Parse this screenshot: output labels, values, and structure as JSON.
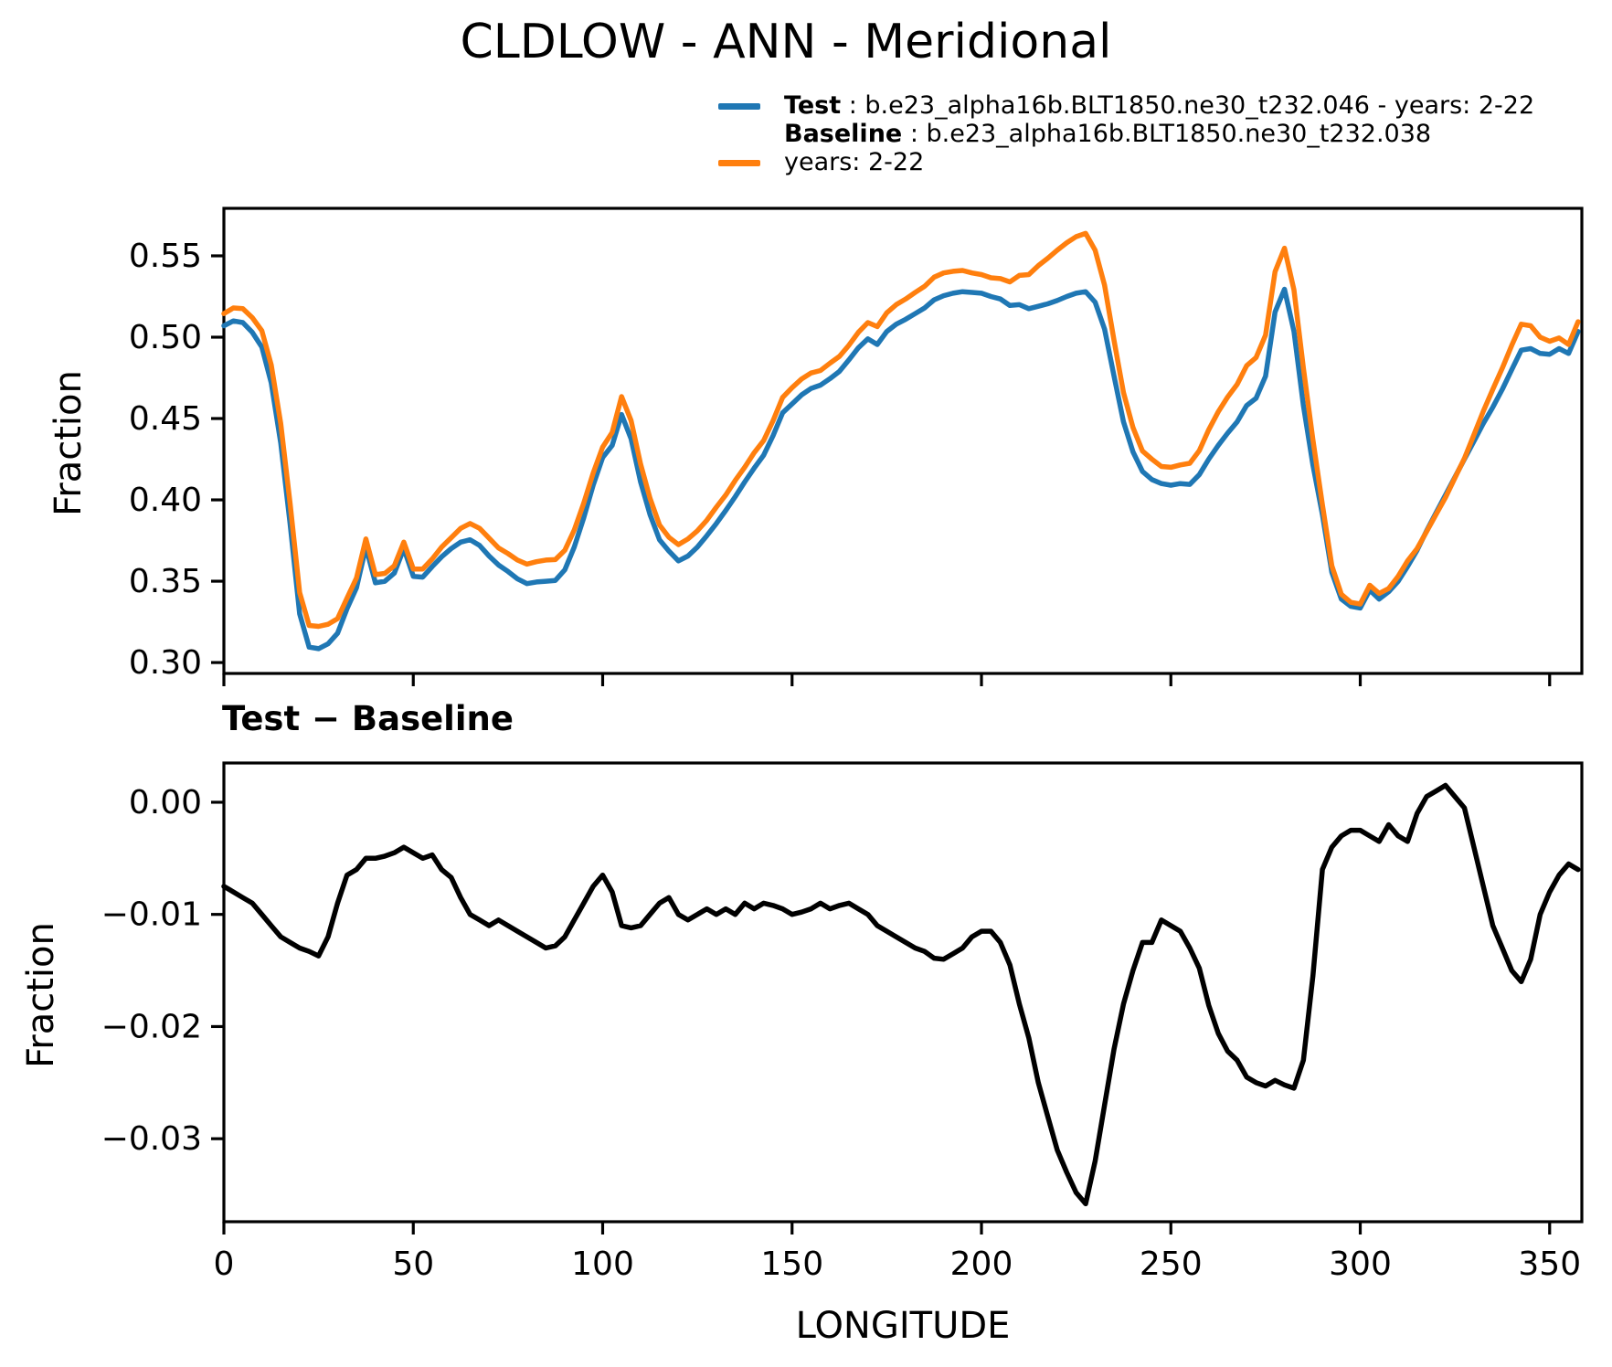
{
  "figure_title": "CLDLOW - ANN - Meridional",
  "legend": {
    "entries": [
      {
        "label": "Test",
        "text": " : b.e23_alpha16b.BLT1850.ne30_t232.046 - years: 2-22",
        "color": "#1f77b4"
      },
      {
        "label": "Baseline",
        "text": " : b.e23_alpha16b.BLT1850.ne30_t232.038",
        "text_line2": "years: 2-22",
        "color": "#ff7f0e"
      }
    ]
  },
  "top_plot": {
    "ylabel": "Fraction",
    "ylim": [
      0.2933,
      0.5792
    ],
    "xlim": [
      0,
      358.5
    ],
    "yticks": [
      0.3,
      0.35,
      0.4,
      0.45,
      0.5,
      0.55
    ],
    "ytick_labels": [
      "0.30",
      "0.35",
      "0.40",
      "0.45",
      "0.50",
      "0.55"
    ],
    "xticks": [
      0,
      50,
      100,
      150,
      200,
      250,
      300,
      350
    ],
    "xtick_labels": []
  },
  "bottom_plot": {
    "title": "Test − Baseline",
    "ylabel": "Fraction",
    "xlabel": "LONGITUDE",
    "ylim": [
      -0.0374,
      0.0035
    ],
    "xlim": [
      0,
      358.5
    ],
    "yticks": [
      0.0,
      -0.01,
      -0.02,
      -0.03
    ],
    "ytick_labels": [
      "0.00",
      "−0.01",
      "−0.02",
      "−0.03"
    ],
    "xticks": [
      0,
      50,
      100,
      150,
      200,
      250,
      300,
      350
    ],
    "xtick_labels": [
      "0",
      "50",
      "100",
      "150",
      "200",
      "250",
      "300",
      "350"
    ]
  },
  "chart_data": [
    {
      "type": "line",
      "panel": "top",
      "title": "CLDLOW - ANN - Meridional",
      "xlabel": "",
      "ylabel": "Fraction",
      "ylim": [
        0.2933,
        0.5792
      ],
      "legend_position": "upper-right-above-axes",
      "grid": false,
      "x": [
        0,
        2.5,
        5,
        7.5,
        10,
        12.5,
        15,
        17.5,
        20,
        22.5,
        25,
        27.5,
        30,
        32.5,
        35,
        37.5,
        40,
        42.5,
        45,
        47.5,
        50,
        52.5,
        55,
        57.5,
        60,
        62.5,
        65,
        67.5,
        70,
        72.5,
        75,
        77.5,
        80,
        82.5,
        85,
        87.5,
        90,
        92.5,
        95,
        97.5,
        100,
        102.5,
        105,
        107.5,
        110,
        112.5,
        115,
        117.5,
        120,
        122.5,
        125,
        127.5,
        130,
        132.5,
        135,
        137.5,
        140,
        142.5,
        145,
        147.5,
        150,
        152.5,
        155,
        157.5,
        160,
        162.5,
        165,
        167.5,
        170,
        172.5,
        175,
        177.5,
        180,
        182.5,
        185,
        187.5,
        190,
        192.5,
        195,
        197.5,
        200,
        202.5,
        205,
        207.5,
        210,
        212.5,
        215,
        217.5,
        220,
        222.5,
        225,
        227.5,
        230,
        232.5,
        235,
        237.5,
        240,
        242.5,
        245,
        247.5,
        250,
        252.5,
        255,
        257.5,
        260,
        262.5,
        265,
        267.5,
        270,
        272.5,
        275,
        277.5,
        280,
        282.5,
        285,
        287.5,
        290,
        292.5,
        295,
        297.5,
        300,
        302.5,
        305,
        307.5,
        310,
        312.5,
        315,
        317.5,
        320,
        322.5,
        325,
        327.5,
        330,
        332.5,
        335,
        337.5,
        340,
        342.5,
        345,
        347.5,
        350,
        352.5,
        355,
        357.5
      ],
      "series": [
        {
          "name": "Test",
          "color": "#1f77b4",
          "values": [
            0.507,
            0.51,
            0.509,
            0.503,
            0.494,
            0.472,
            0.435,
            0.385,
            0.33,
            0.3095,
            0.3085,
            0.3115,
            0.318,
            0.333,
            0.346,
            0.371,
            0.349,
            0.35,
            0.355,
            0.37,
            0.353,
            0.3525,
            0.359,
            0.365,
            0.37,
            0.374,
            0.3755,
            0.372,
            0.3655,
            0.36,
            0.356,
            0.3515,
            0.3485,
            0.3495,
            0.35,
            0.3505,
            0.357,
            0.371,
            0.389,
            0.409,
            0.426,
            0.4335,
            0.4525,
            0.4375,
            0.411,
            0.391,
            0.3755,
            0.3685,
            0.3625,
            0.3655,
            0.371,
            0.378,
            0.3855,
            0.3935,
            0.402,
            0.411,
            0.4195,
            0.4275,
            0.4395,
            0.4535,
            0.459,
            0.4645,
            0.4685,
            0.4705,
            0.4745,
            0.479,
            0.486,
            0.4935,
            0.499,
            0.4955,
            0.5035,
            0.508,
            0.511,
            0.5145,
            0.518,
            0.523,
            0.5255,
            0.527,
            0.528,
            0.5275,
            0.527,
            0.525,
            0.5235,
            0.5195,
            0.52,
            0.5175,
            0.519,
            0.5205,
            0.5225,
            0.525,
            0.527,
            0.528,
            0.5215,
            0.505,
            0.476,
            0.448,
            0.4295,
            0.4175,
            0.4125,
            0.41,
            0.409,
            0.41,
            0.4095,
            0.4155,
            0.425,
            0.4335,
            0.441,
            0.448,
            0.458,
            0.4625,
            0.476,
            0.5155,
            0.5295,
            0.5035,
            0.458,
            0.4215,
            0.391,
            0.3555,
            0.339,
            0.3345,
            0.3335,
            0.3445,
            0.339,
            0.3435,
            0.35,
            0.359,
            0.369,
            0.381,
            0.392,
            0.403,
            0.414,
            0.425,
            0.436,
            0.447,
            0.457,
            0.468,
            0.48,
            0.492,
            0.493,
            0.49,
            0.4895,
            0.493,
            0.49,
            0.5035
          ]
        },
        {
          "name": "Baseline",
          "color": "#ff7f0e",
          "values": [
            0.5145,
            0.518,
            0.5175,
            0.512,
            0.504,
            0.483,
            0.447,
            0.3975,
            0.343,
            0.3228,
            0.3222,
            0.3235,
            0.327,
            0.3395,
            0.352,
            0.376,
            0.354,
            0.3548,
            0.3595,
            0.374,
            0.3575,
            0.3575,
            0.3637,
            0.371,
            0.3767,
            0.3825,
            0.3855,
            0.3825,
            0.3765,
            0.3705,
            0.367,
            0.363,
            0.3605,
            0.362,
            0.363,
            0.3633,
            0.369,
            0.3815,
            0.398,
            0.4165,
            0.4325,
            0.4415,
            0.4635,
            0.4487,
            0.422,
            0.401,
            0.3845,
            0.377,
            0.3725,
            0.376,
            0.381,
            0.3875,
            0.3955,
            0.403,
            0.412,
            0.42,
            0.429,
            0.4365,
            0.4487,
            0.463,
            0.469,
            0.4743,
            0.478,
            0.4795,
            0.484,
            0.4882,
            0.495,
            0.503,
            0.509,
            0.5065,
            0.515,
            0.52,
            0.5235,
            0.5275,
            0.5313,
            0.5369,
            0.5395,
            0.5405,
            0.541,
            0.5395,
            0.5385,
            0.5365,
            0.536,
            0.534,
            0.538,
            0.5385,
            0.544,
            0.5485,
            0.5535,
            0.558,
            0.5618,
            0.5638,
            0.5535,
            0.532,
            0.498,
            0.466,
            0.4445,
            0.43,
            0.425,
            0.4205,
            0.42,
            0.4215,
            0.4225,
            0.4303,
            0.4431,
            0.4541,
            0.4632,
            0.471,
            0.4825,
            0.4875,
            0.5013,
            0.5403,
            0.5547,
            0.529,
            0.481,
            0.437,
            0.397,
            0.3595,
            0.342,
            0.337,
            0.336,
            0.3475,
            0.3425,
            0.3455,
            0.353,
            0.3625,
            0.37,
            0.3805,
            0.391,
            0.4015,
            0.4135,
            0.4255,
            0.44,
            0.4545,
            0.468,
            0.481,
            0.495,
            0.508,
            0.507,
            0.5,
            0.4975,
            0.4995,
            0.4955,
            0.5095
          ]
        }
      ]
    },
    {
      "type": "line",
      "panel": "bottom",
      "title": "Test − Baseline",
      "xlabel": "LONGITUDE",
      "ylabel": "Fraction",
      "ylim": [
        -0.0374,
        0.0035
      ],
      "grid": false,
      "x": [
        0,
        2.5,
        5,
        7.5,
        10,
        12.5,
        15,
        17.5,
        20,
        22.5,
        25,
        27.5,
        30,
        32.5,
        35,
        37.5,
        40,
        42.5,
        45,
        47.5,
        50,
        52.5,
        55,
        57.5,
        60,
        62.5,
        65,
        67.5,
        70,
        72.5,
        75,
        77.5,
        80,
        82.5,
        85,
        87.5,
        90,
        92.5,
        95,
        97.5,
        100,
        102.5,
        105,
        107.5,
        110,
        112.5,
        115,
        117.5,
        120,
        122.5,
        125,
        127.5,
        130,
        132.5,
        135,
        137.5,
        140,
        142.5,
        145,
        147.5,
        150,
        152.5,
        155,
        157.5,
        160,
        162.5,
        165,
        167.5,
        170,
        172.5,
        175,
        177.5,
        180,
        182.5,
        185,
        187.5,
        190,
        192.5,
        195,
        197.5,
        200,
        202.5,
        205,
        207.5,
        210,
        212.5,
        215,
        217.5,
        220,
        222.5,
        225,
        227.5,
        230,
        232.5,
        235,
        237.5,
        240,
        242.5,
        245,
        247.5,
        250,
        252.5,
        255,
        257.5,
        260,
        262.5,
        265,
        267.5,
        270,
        272.5,
        275,
        277.5,
        280,
        282.5,
        285,
        287.5,
        290,
        292.5,
        295,
        297.5,
        300,
        302.5,
        305,
        307.5,
        310,
        312.5,
        315,
        317.5,
        320,
        322.5,
        325,
        327.5,
        330,
        332.5,
        335,
        337.5,
        340,
        342.5,
        345,
        347.5,
        350,
        352.5,
        355,
        357.5
      ],
      "series": [
        {
          "name": "Test − Baseline",
          "color": "#000000",
          "values": [
            -0.0075,
            -0.008,
            -0.0085,
            -0.009,
            -0.01,
            -0.011,
            -0.012,
            -0.0125,
            -0.013,
            -0.0133,
            -0.0137,
            -0.012,
            -0.009,
            -0.0065,
            -0.006,
            -0.005,
            -0.005,
            -0.0048,
            -0.0045,
            -0.004,
            -0.0045,
            -0.005,
            -0.0047,
            -0.006,
            -0.0067,
            -0.0085,
            -0.01,
            -0.0105,
            -0.011,
            -0.0105,
            -0.011,
            -0.0115,
            -0.012,
            -0.0125,
            -0.013,
            -0.0128,
            -0.012,
            -0.0105,
            -0.009,
            -0.0075,
            -0.0065,
            -0.008,
            -0.011,
            -0.0112,
            -0.011,
            -0.01,
            -0.009,
            -0.0085,
            -0.01,
            -0.0105,
            -0.01,
            -0.0095,
            -0.01,
            -0.0095,
            -0.01,
            -0.009,
            -0.0095,
            -0.009,
            -0.0092,
            -0.0095,
            -0.01,
            -0.0098,
            -0.0095,
            -0.009,
            -0.0095,
            -0.0092,
            -0.009,
            -0.0095,
            -0.01,
            -0.011,
            -0.0115,
            -0.012,
            -0.0125,
            -0.013,
            -0.0133,
            -0.0139,
            -0.014,
            -0.0135,
            -0.013,
            -0.012,
            -0.0115,
            -0.0115,
            -0.0125,
            -0.0145,
            -0.018,
            -0.021,
            -0.025,
            -0.028,
            -0.031,
            -0.033,
            -0.0348,
            -0.0358,
            -0.032,
            -0.027,
            -0.022,
            -0.018,
            -0.015,
            -0.0125,
            -0.0125,
            -0.0105,
            -0.011,
            -0.0115,
            -0.013,
            -0.0148,
            -0.0181,
            -0.0206,
            -0.0222,
            -0.023,
            -0.0245,
            -0.025,
            -0.0253,
            -0.0248,
            -0.0252,
            -0.0255,
            -0.023,
            -0.0155,
            -0.006,
            -0.004,
            -0.003,
            -0.0025,
            -0.0025,
            -0.003,
            -0.0035,
            -0.002,
            -0.003,
            -0.0035,
            -0.001,
            0.0005,
            0.001,
            0.0015,
            0.0005,
            -0.0005,
            -0.004,
            -0.0075,
            -0.011,
            -0.013,
            -0.015,
            -0.016,
            -0.014,
            -0.01,
            -0.008,
            -0.0065,
            -0.0055,
            -0.006
          ]
        }
      ]
    }
  ]
}
